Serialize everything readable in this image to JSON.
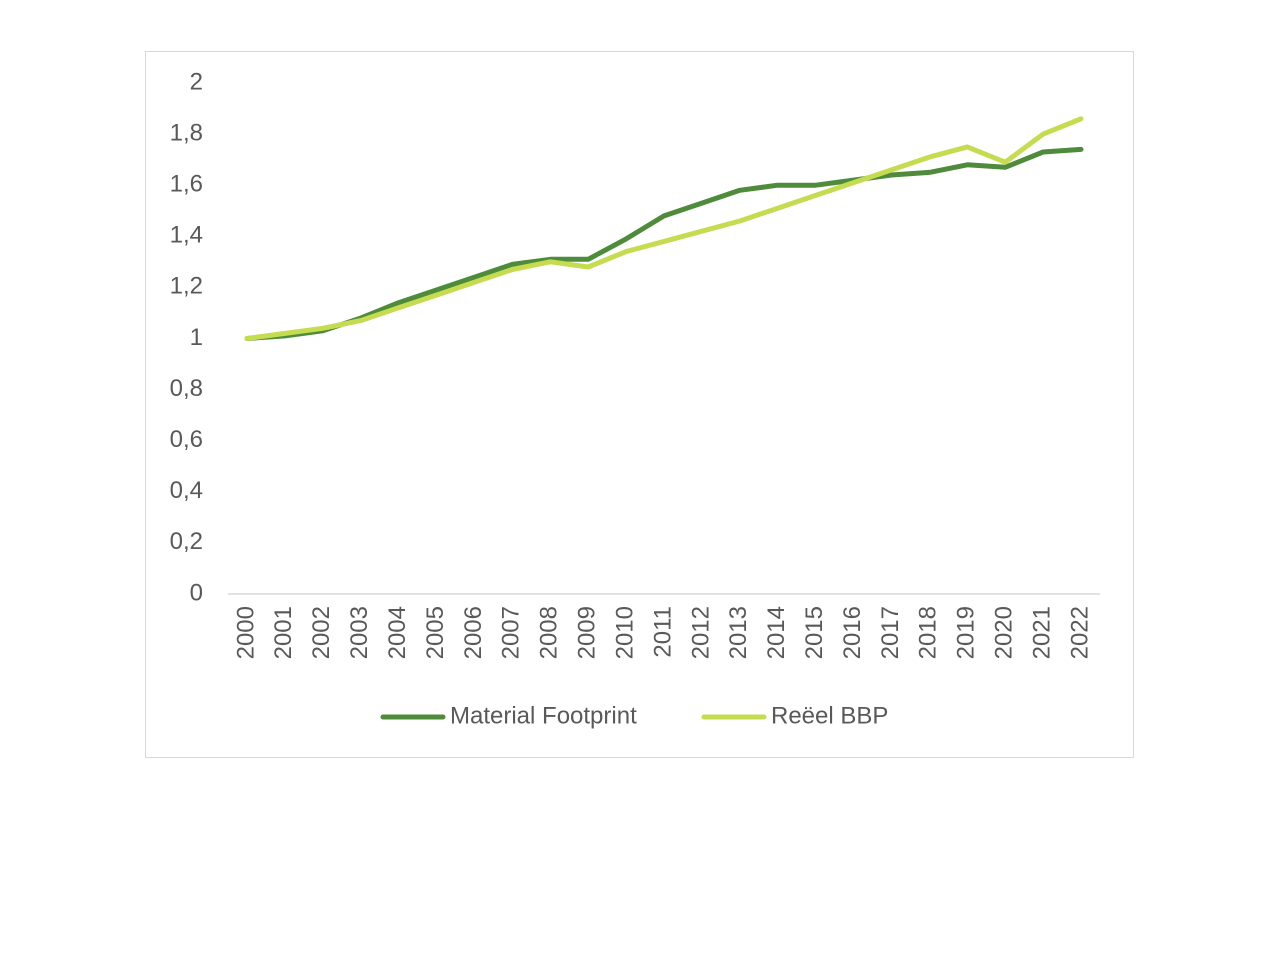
{
  "chart_data": {
    "type": "line",
    "title": "",
    "xlabel": "",
    "ylabel": "",
    "x": [
      "2000",
      "2001",
      "2002",
      "2003",
      "2004",
      "2005",
      "2006",
      "2007",
      "2008",
      "2009",
      "2010",
      "2011",
      "2012",
      "2013",
      "2014",
      "2015",
      "2016",
      "2017",
      "2018",
      "2019",
      "2020",
      "2021",
      "2022"
    ],
    "y_ticks": [
      "0",
      "0,2",
      "0,4",
      "0,6",
      "0,8",
      "1",
      "1,2",
      "1,4",
      "1,6",
      "1,8",
      "2"
    ],
    "ylim": [
      0,
      2
    ],
    "grid": false,
    "legend_position": "bottom",
    "series": [
      {
        "name": "Material Footprint",
        "color": "#4e8b3a",
        "values": [
          1.0,
          1.01,
          1.03,
          1.08,
          1.14,
          1.19,
          1.24,
          1.29,
          1.31,
          1.31,
          1.39,
          1.48,
          1.53,
          1.58,
          1.6,
          1.6,
          1.62,
          1.64,
          1.65,
          1.68,
          1.67,
          1.73,
          1.74
        ]
      },
      {
        "name": "Reëel BBP",
        "color": "#c6dc50",
        "values": [
          1.0,
          1.02,
          1.04,
          1.07,
          1.12,
          1.17,
          1.22,
          1.27,
          1.3,
          1.28,
          1.34,
          1.38,
          1.42,
          1.46,
          1.51,
          1.56,
          1.61,
          1.66,
          1.71,
          1.75,
          1.69,
          1.8,
          1.86
        ]
      }
    ]
  }
}
